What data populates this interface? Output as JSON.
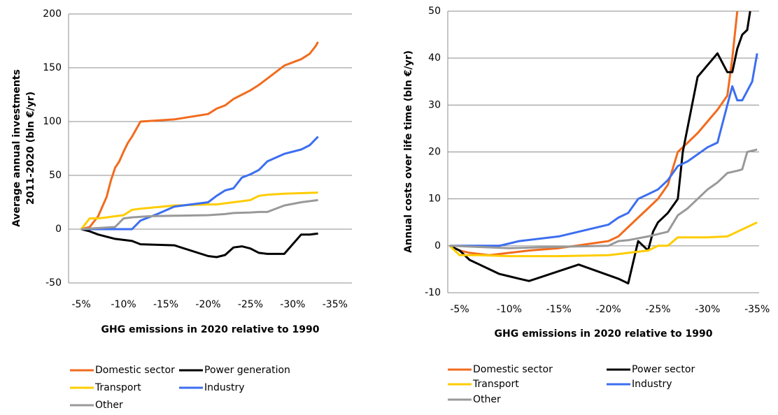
{
  "chart_data": [
    {
      "type": "line",
      "x_label": "GHG emissions in 2020 relative to 1990",
      "y_label": [
        "Average annual investments",
        "2011-2020 (bln €/yr)"
      ],
      "xlim": [
        -3.5,
        -37
      ],
      "ylim": [
        -50,
        200
      ],
      "xticks": [
        {
          "value": -5,
          "label": "-5%"
        },
        {
          "value": -10,
          "label": "-10%"
        },
        {
          "value": -15,
          "label": "-15%"
        },
        {
          "value": -20,
          "label": "-20%"
        },
        {
          "value": -25,
          "label": "-25%"
        },
        {
          "value": -30,
          "label": "-30%"
        },
        {
          "value": -35,
          "label": "-35%"
        }
      ],
      "yticks": [
        -50,
        0,
        50,
        100,
        150,
        200
      ],
      "grid": true,
      "series": [
        {
          "name": "Domestic sector",
          "color": "#f26b1d",
          "x": [
            -5,
            -6,
            -7,
            -8,
            -8.5,
            -9,
            -9.5,
            -10,
            -10.5,
            -11,
            -12,
            -16,
            -20,
            -21,
            -22,
            -23,
            -24,
            -25,
            -26,
            -27,
            -29,
            -31,
            -32,
            -32.7,
            -33
          ],
          "values": [
            0,
            2,
            12,
            30,
            45,
            57,
            63,
            72,
            80,
            86,
            100,
            102,
            107,
            112,
            115,
            121,
            125,
            129,
            134,
            140,
            152,
            158,
            163,
            170,
            174
          ]
        },
        {
          "name": "Power generation",
          "color": "#000000",
          "x": [
            -5,
            -6,
            -7,
            -8,
            -9,
            -10,
            -11,
            -12,
            -16,
            -20,
            -21,
            -22,
            -23,
            -24,
            -25,
            -26,
            -27,
            -29,
            -31,
            -32,
            -33
          ],
          "values": [
            0,
            -2,
            -5,
            -7,
            -9,
            -10,
            -11,
            -14,
            -15,
            -25,
            -26,
            -24,
            -17,
            -16,
            -18,
            -22,
            -23,
            -23,
            -5,
            -5,
            -4
          ]
        },
        {
          "name": "Transport",
          "color": "#ffcc00",
          "x": [
            -5,
            -5.5,
            -6,
            -7,
            -8,
            -9,
            -10,
            -11,
            -12,
            -16,
            -20,
            -21,
            -22,
            -23,
            -25,
            -26,
            -27,
            -29,
            -33
          ],
          "values": [
            0,
            5,
            10,
            10,
            11,
            12,
            13,
            18,
            19,
            22,
            23,
            23,
            24,
            25,
            27,
            31,
            32,
            33,
            34
          ]
        },
        {
          "name": "Industry",
          "color": "#3c6ef0",
          "x": [
            -5,
            -9,
            -11,
            -12,
            -14,
            -16,
            -20,
            -21,
            -22,
            -23,
            -24,
            -25,
            -26,
            -27,
            -29,
            -31,
            -32,
            -33
          ],
          "values": [
            0,
            0,
            0,
            8,
            14,
            21,
            25,
            31,
            36,
            38,
            48,
            51,
            55,
            63,
            70,
            74,
            78,
            86
          ]
        },
        {
          "name": "Other",
          "color": "#999999",
          "x": [
            -5,
            -9,
            -10,
            -11,
            -13,
            -16,
            -20,
            -22,
            -23,
            -25,
            -26,
            -27,
            -29,
            -31,
            -33
          ],
          "values": [
            0,
            2,
            10,
            11,
            12,
            12.5,
            13,
            14,
            15,
            15.5,
            16,
            16,
            22,
            25,
            27
          ]
        }
      ]
    },
    {
      "type": "line",
      "x_label": "GHG emissions in 2020 relative to 1990",
      "y_label": [
        "Annual costs over life time (bln €/yr)"
      ],
      "xlim": [
        -3.8,
        -35.2
      ],
      "ylim": [
        -10,
        50
      ],
      "xticks": [
        {
          "value": -5,
          "label": "-5%"
        },
        {
          "value": -10,
          "label": "-10%"
        },
        {
          "value": -15,
          "label": "-15%"
        },
        {
          "value": -20,
          "label": "-20%"
        },
        {
          "value": -25,
          "label": "-25%"
        },
        {
          "value": -30,
          "label": "-30%"
        },
        {
          "value": -35,
          "label": "-35%"
        }
      ],
      "yticks": [
        -10,
        0,
        10,
        20,
        30,
        40,
        50
      ],
      "grid": true,
      "series": [
        {
          "name": "Domestic sector",
          "color": "#f26b1d",
          "x": [
            -4,
            -5,
            -6,
            -8,
            -10,
            -12,
            -15,
            -20,
            -21,
            -22,
            -23,
            -24,
            -25,
            -26,
            -27,
            -28,
            -29,
            -31,
            -32,
            -32.5,
            -33
          ],
          "values": [
            0,
            -1,
            -1.5,
            -2,
            -1.5,
            -1,
            -0.5,
            1,
            2,
            4,
            6,
            8,
            10,
            13,
            20,
            22,
            24,
            29,
            32,
            40,
            50
          ]
        },
        {
          "name": "Power sector",
          "color": "#000000",
          "x": [
            -4,
            -5,
            -6,
            -7,
            -8,
            -9,
            -10,
            -11,
            -12,
            -17,
            -21,
            -22,
            -23,
            -24,
            -24.5,
            -25,
            -26,
            -27,
            -27.5,
            -29,
            -31,
            -32,
            -32.5,
            -33,
            -33.5,
            -34,
            -34.3
          ],
          "values": [
            0,
            -1,
            -3,
            -4,
            -5,
            -6,
            -6.5,
            -7,
            -7.5,
            -4,
            -7,
            -8,
            1,
            -1,
            3,
            5,
            7,
            10,
            20,
            36,
            41,
            37,
            37,
            42,
            45,
            46,
            50
          ]
        },
        {
          "name": "Transport",
          "color": "#ffcc00",
          "x": [
            -4,
            -4.5,
            -5,
            -7,
            -10,
            -15,
            -20,
            -22,
            -24,
            -25,
            -26,
            -27,
            -30,
            -32,
            -33,
            -34,
            -35
          ],
          "values": [
            0,
            -1,
            -2,
            -2,
            -2.2,
            -2.2,
            -2,
            -1.5,
            -1,
            0,
            0,
            1.8,
            1.8,
            2,
            3,
            4,
            5
          ]
        },
        {
          "name": "Industry",
          "color": "#3c6ef0",
          "x": [
            -4,
            -9,
            -10,
            -11,
            -15,
            -20,
            -21,
            -22,
            -23,
            -24,
            -25,
            -26,
            -27,
            -28,
            -30,
            -31,
            -32,
            -32.5,
            -33,
            -33.5,
            -34,
            -34.5,
            -35
          ],
          "values": [
            0,
            0,
            0.5,
            1,
            2,
            4.5,
            6,
            7,
            10,
            11,
            12,
            14,
            17,
            18,
            21,
            22,
            30,
            34,
            31,
            31,
            33,
            35,
            41
          ]
        },
        {
          "name": "Other",
          "color": "#999999",
          "x": [
            -4,
            -10,
            -15,
            -20,
            -21,
            -22,
            -24,
            -26,
            -27,
            -28,
            -29,
            -30,
            -31,
            -32,
            -33,
            -33.5,
            -34,
            -35
          ],
          "values": [
            0,
            -0.5,
            -0.2,
            0,
            1,
            1.2,
            2,
            3,
            6.5,
            8,
            10,
            12,
            13.5,
            15.5,
            16,
            16.3,
            20,
            20.5
          ]
        }
      ]
    }
  ]
}
